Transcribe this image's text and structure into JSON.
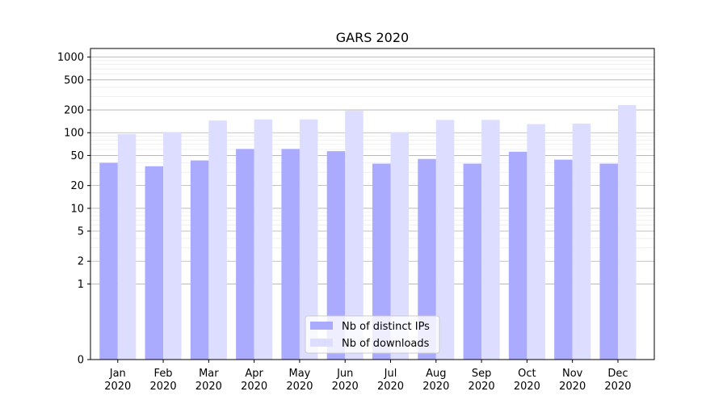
{
  "chart_data": {
    "type": "bar",
    "title": "GARS 2020",
    "xlabel": "",
    "ylabel": "",
    "yscale": "symlog",
    "ylim": [
      0,
      1300
    ],
    "yticks": [
      0,
      1,
      2,
      5,
      10,
      20,
      50,
      100,
      200,
      500,
      1000
    ],
    "grid": true,
    "legend_position": "bottom-center",
    "categories": [
      "Jan\n2020",
      "Feb\n2020",
      "Mar\n2020",
      "Apr\n2020",
      "May\n2020",
      "Jun\n2020",
      "Jul\n2020",
      "Aug\n2020",
      "Sep\n2020",
      "Oct\n2020",
      "Nov\n2020",
      "Dec\n2020"
    ],
    "series": [
      {
        "name": "Nb of distinct IPs",
        "color": "#aaaaff",
        "values": [
          40,
          36,
          43,
          61,
          61,
          57,
          39,
          45,
          39,
          56,
          44,
          39
        ]
      },
      {
        "name": "Nb of downloads",
        "color": "#ddddff",
        "values": [
          96,
          102,
          145,
          150,
          150,
          195,
          102,
          148,
          148,
          130,
          132,
          232
        ]
      }
    ]
  }
}
